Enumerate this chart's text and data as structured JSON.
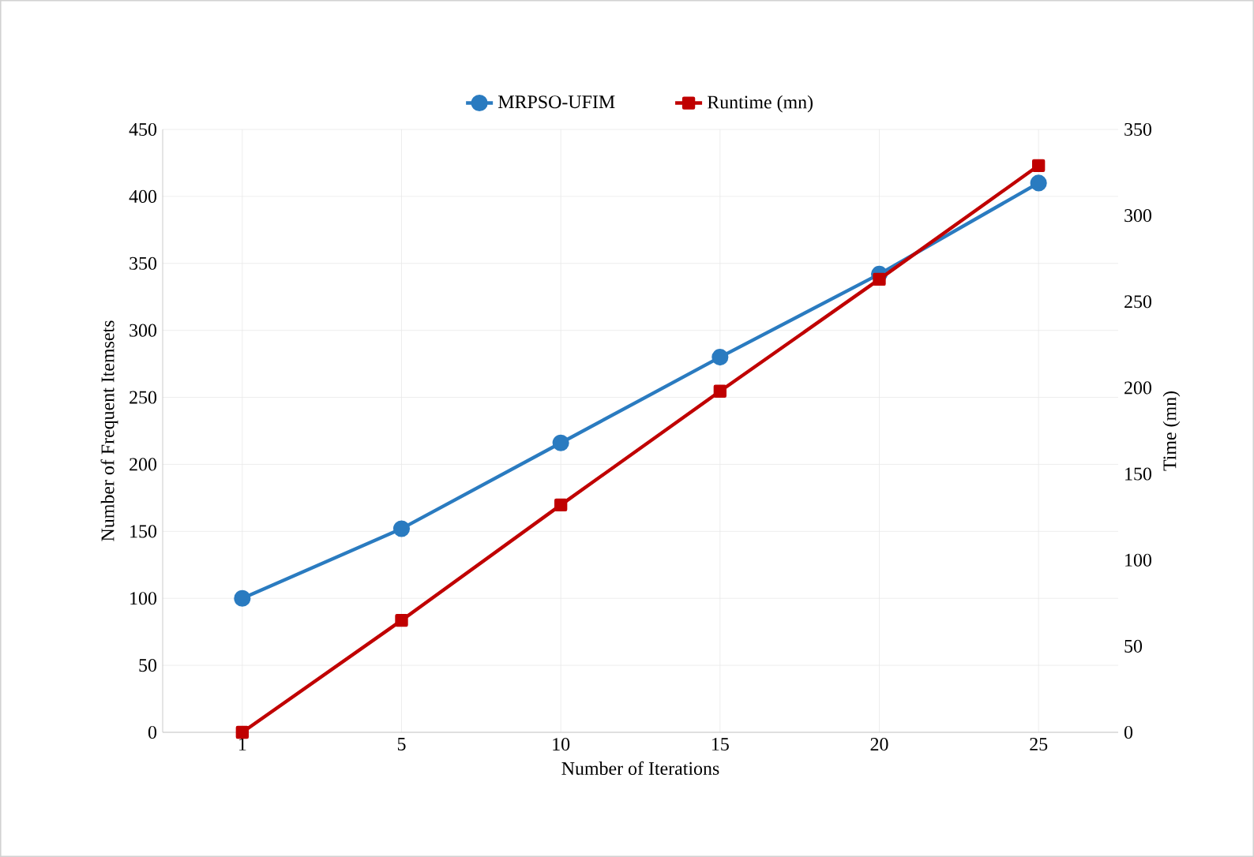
{
  "chart_data": {
    "type": "line",
    "xlabel": "Number of Iterations",
    "ylabel": "Number of Frequent Itemsets",
    "y2label": "Time  (mn)",
    "categories": [
      "1",
      "5",
      "10",
      "15",
      "20",
      "25"
    ],
    "series": [
      {
        "name": "MRPSO-UFIM",
        "color": "#2a7bc0",
        "marker": "circle",
        "values": [
          100,
          152,
          216,
          280,
          342,
          410
        ]
      },
      {
        "name": "Runtime (mn)",
        "color": "#c00000",
        "marker": "square",
        "axis": "y2",
        "values": [
          0,
          65,
          132,
          198,
          263,
          329
        ]
      }
    ],
    "ylim": [
      0,
      450
    ],
    "yticks": [
      0,
      50,
      100,
      150,
      200,
      250,
      300,
      350,
      400,
      450
    ],
    "y2lim": [
      0,
      350
    ],
    "y2ticks": [
      0,
      50,
      100,
      150,
      200,
      250,
      300,
      350
    ],
    "grid": true,
    "legend": "top",
    "line_style": "solid"
  }
}
